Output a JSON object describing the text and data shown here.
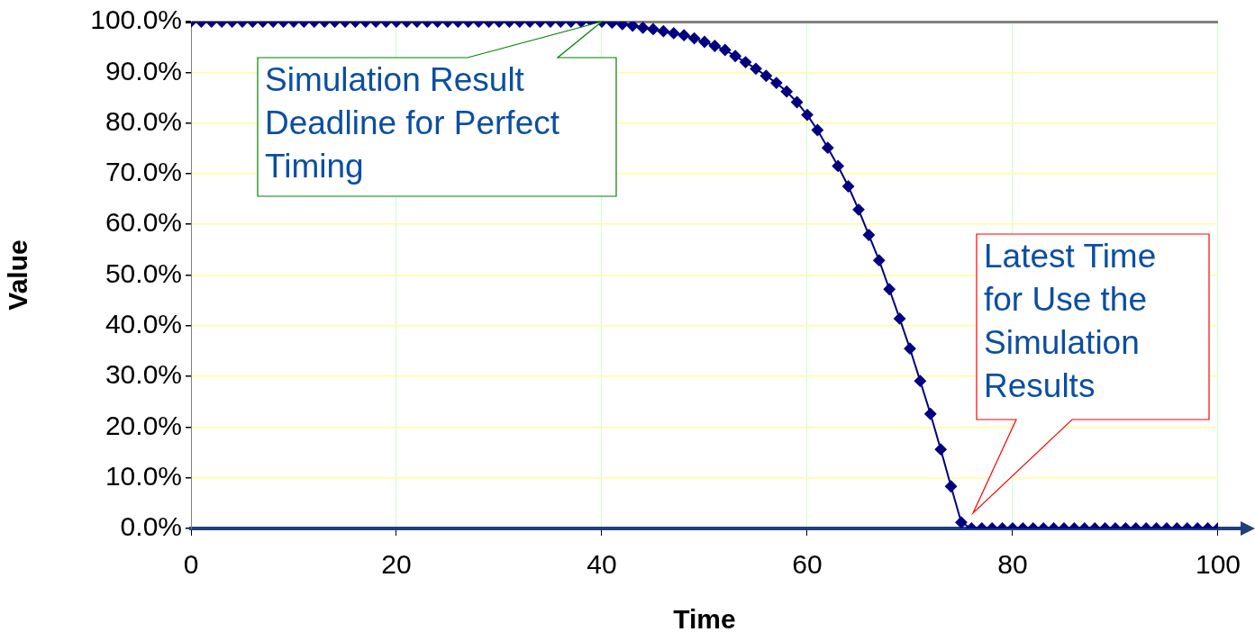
{
  "chart_data": {
    "type": "line",
    "xlabel": "Time",
    "ylabel": "Value",
    "x": [
      0,
      1,
      2,
      3,
      4,
      5,
      6,
      7,
      8,
      9,
      10,
      11,
      12,
      13,
      14,
      15,
      16,
      17,
      18,
      19,
      20,
      21,
      22,
      23,
      24,
      25,
      26,
      27,
      28,
      29,
      30,
      31,
      32,
      33,
      34,
      35,
      36,
      37,
      38,
      39,
      40,
      41,
      42,
      43,
      44,
      45,
      46,
      47,
      48,
      49,
      50,
      51,
      52,
      53,
      54,
      55,
      56,
      57,
      58,
      59,
      60,
      61,
      62,
      63,
      64,
      65,
      66,
      67,
      68,
      69,
      70,
      71,
      72,
      73,
      74,
      75,
      76,
      77,
      78,
      79,
      80,
      81,
      82,
      83,
      84,
      85,
      86,
      87,
      88,
      89,
      90,
      91,
      92,
      93,
      94,
      95,
      96,
      97,
      98,
      99,
      100
    ],
    "series": [
      {
        "color": "#000080",
        "values": [
          100,
          100,
          100,
          100,
          100,
          100,
          100,
          100,
          100,
          100,
          100,
          100,
          100,
          100,
          100,
          100,
          100,
          100,
          100,
          100,
          100,
          100,
          100,
          100,
          100,
          100,
          100,
          100,
          100,
          100,
          100,
          100,
          100,
          100,
          100,
          100,
          100,
          100,
          100,
          100,
          100,
          99.8,
          99.5,
          99.2,
          98.8,
          98.5,
          98.1,
          97.7,
          97.3,
          96.7,
          96.0,
          95.2,
          94.4,
          93.2,
          92.0,
          90.7,
          89.3,
          87.9,
          86.2,
          84.1,
          81.6,
          78.6,
          75.1,
          71.5,
          67.5,
          62.9,
          57.9,
          52.9,
          47.2,
          41.4,
          35.5,
          29.1,
          22.6,
          15.6,
          8.3,
          1.2,
          0,
          0,
          0,
          0,
          0,
          0,
          0,
          0,
          0,
          0,
          0,
          0,
          0,
          0,
          0,
          0,
          0,
          0,
          0,
          0,
          0,
          0,
          0,
          0,
          0
        ]
      }
    ],
    "xlim": [
      0,
      100
    ],
    "xticks": [
      0,
      20,
      40,
      60,
      80,
      100
    ],
    "ylim": [
      0,
      100
    ],
    "yticks": [
      {
        "value": 0,
        "label": "0.0%"
      },
      {
        "value": 10,
        "label": "10.0%"
      },
      {
        "value": 20,
        "label": "20.0%"
      },
      {
        "value": 30,
        "label": "30.0%"
      },
      {
        "value": 40,
        "label": "40.0%"
      },
      {
        "value": 50,
        "label": "50.0%"
      },
      {
        "value": 60,
        "label": "60.0%"
      },
      {
        "value": 70,
        "label": "70.0%"
      },
      {
        "value": 80,
        "label": "80.0%"
      },
      {
        "value": 90,
        "label": "90.0%"
      },
      {
        "value": 100,
        "label": "100.0%"
      }
    ],
    "grid": true,
    "legend": false,
    "marker": "diamond",
    "line_style": "solid",
    "annotations": [
      {
        "text": "Simulation Result Deadline for Perfect Timing",
        "x": 40,
        "y": 100
      },
      "Latest Time for Use the Simulation Results"
    ]
  }
}
